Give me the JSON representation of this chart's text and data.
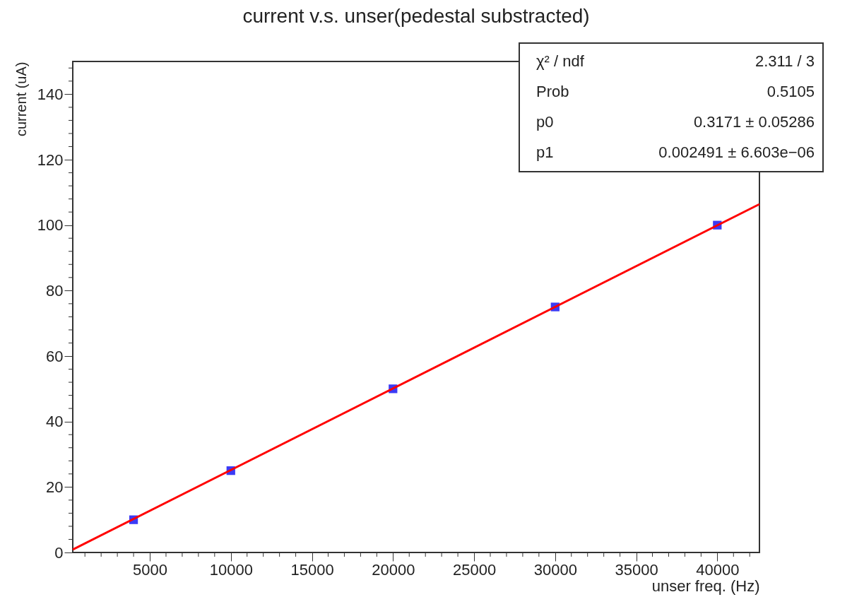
{
  "chart_data": {
    "type": "scatter",
    "title": "current v.s. unser(pedestal substracted)",
    "xlabel": "unser freq. (Hz)",
    "ylabel": "current (uA)",
    "series": [
      {
        "color": "#3b3bf5",
        "marker": "square",
        "x": [
          4000,
          10000,
          20000,
          30000,
          40000
        ],
        "values": [
          10,
          25,
          50,
          75,
          100
        ]
      },
      {
        "type": "line",
        "color": "#ff0000",
        "marker": "none",
        "line_style": "solid",
        "x": [
          250,
          42600
        ],
        "values": [
          0.9,
          106.4
        ]
      }
    ],
    "xlim": [
      250,
      42600
    ],
    "ylim": [
      0,
      150
    ],
    "xticks": [
      {
        "value": 1000,
        "label": null
      },
      {
        "value": 2000,
        "label": null
      },
      {
        "value": 3000,
        "label": null
      },
      {
        "value": 4000,
        "label": null
      },
      5000,
      {
        "value": 6000,
        "label": null
      },
      {
        "value": 7000,
        "label": null
      },
      {
        "value": 8000,
        "label": null
      },
      {
        "value": 9000,
        "label": null
      },
      10000,
      {
        "value": 11000,
        "label": null
      },
      {
        "value": 12000,
        "label": null
      },
      {
        "value": 13000,
        "label": null
      },
      {
        "value": 14000,
        "label": null
      },
      15000,
      {
        "value": 16000,
        "label": null
      },
      {
        "value": 17000,
        "label": null
      },
      {
        "value": 18000,
        "label": null
      },
      {
        "value": 19000,
        "label": null
      },
      20000,
      {
        "value": 21000,
        "label": null
      },
      {
        "value": 22000,
        "label": null
      },
      {
        "value": 23000,
        "label": null
      },
      {
        "value": 24000,
        "label": null
      },
      25000,
      {
        "value": 26000,
        "label": null
      },
      {
        "value": 27000,
        "label": null
      },
      {
        "value": 28000,
        "label": null
      },
      {
        "value": 29000,
        "label": null
      },
      30000,
      {
        "value": 31000,
        "label": null
      },
      {
        "value": 32000,
        "label": null
      },
      {
        "value": 33000,
        "label": null
      },
      {
        "value": 34000,
        "label": null
      },
      35000,
      {
        "value": 36000,
        "label": null
      },
      {
        "value": 37000,
        "label": null
      },
      {
        "value": 38000,
        "label": null
      },
      {
        "value": 39000,
        "label": null
      },
      40000,
      {
        "value": 41000,
        "label": null
      },
      {
        "value": 42000,
        "label": null
      }
    ],
    "yticks": [
      0,
      {
        "value": 4,
        "label": null
      },
      {
        "value": 8,
        "label": null
      },
      {
        "value": 12,
        "label": null
      },
      {
        "value": 16,
        "label": null
      },
      20,
      {
        "value": 24,
        "label": null
      },
      {
        "value": 28,
        "label": null
      },
      {
        "value": 32,
        "label": null
      },
      {
        "value": 36,
        "label": null
      },
      40,
      {
        "value": 44,
        "label": null
      },
      {
        "value": 48,
        "label": null
      },
      {
        "value": 52,
        "label": null
      },
      {
        "value": 56,
        "label": null
      },
      60,
      {
        "value": 64,
        "label": null
      },
      {
        "value": 68,
        "label": null
      },
      {
        "value": 72,
        "label": null
      },
      {
        "value": 76,
        "label": null
      },
      80,
      {
        "value": 84,
        "label": null
      },
      {
        "value": 88,
        "label": null
      },
      {
        "value": 92,
        "label": null
      },
      {
        "value": 96,
        "label": null
      },
      100,
      {
        "value": 104,
        "label": null
      },
      {
        "value": 108,
        "label": null
      },
      {
        "value": 112,
        "label": null
      },
      {
        "value": 116,
        "label": null
      },
      120,
      {
        "value": 124,
        "label": null
      },
      {
        "value": 128,
        "label": null
      },
      {
        "value": 132,
        "label": null
      },
      {
        "value": 136,
        "label": null
      },
      140,
      {
        "value": 144,
        "label": null
      },
      {
        "value": 148,
        "label": null
      }
    ],
    "annotations": [
      "χ² / ndf",
      "2.311 / 3",
      "Prob",
      "0.5105",
      "p0",
      "0.3171 ± 0.05286",
      "p1",
      "0.002491 ± 6.603e−06"
    ],
    "grid": false
  }
}
